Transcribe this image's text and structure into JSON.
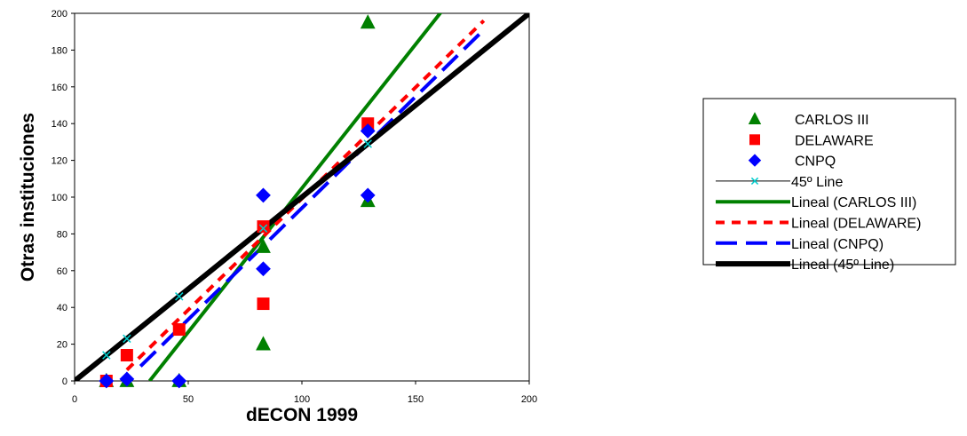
{
  "chart_data": {
    "type": "scatter",
    "title": "",
    "xlabel": "dECON 1999",
    "ylabel": "Otras instituciones",
    "xlim": [
      0,
      200
    ],
    "ylim": [
      0,
      200
    ],
    "x_ticks": [
      0,
      50,
      100,
      150,
      200
    ],
    "y_ticks": [
      0,
      20,
      40,
      60,
      80,
      100,
      120,
      140,
      160,
      180,
      200
    ],
    "grid": false,
    "legend_position": "right",
    "series": [
      {
        "name": "CARLOS III",
        "marker": "triangle",
        "color": "#008000",
        "points": [
          [
            14,
            0
          ],
          [
            23,
            0
          ],
          [
            46,
            0
          ],
          [
            83,
            20
          ],
          [
            83,
            73
          ],
          [
            129,
            98
          ],
          [
            129,
            195
          ]
        ]
      },
      {
        "name": "DELAWARE",
        "marker": "square",
        "color": "#ff0000",
        "points": [
          [
            14,
            0
          ],
          [
            23,
            14
          ],
          [
            46,
            28
          ],
          [
            83,
            42
          ],
          [
            83,
            84
          ],
          [
            129,
            140
          ]
        ]
      },
      {
        "name": "CNPQ",
        "marker": "diamond",
        "color": "#0000ff",
        "points": [
          [
            14,
            0
          ],
          [
            23,
            1
          ],
          [
            46,
            0
          ],
          [
            83,
            61
          ],
          [
            83,
            101
          ],
          [
            129,
            101
          ],
          [
            129,
            136
          ]
        ]
      },
      {
        "name": "45º Line",
        "marker": "x",
        "color": "#00cccc",
        "line_color": "#000000",
        "points": [
          [
            14,
            14
          ],
          [
            23,
            23
          ],
          [
            46,
            46
          ],
          [
            83,
            83
          ],
          [
            129,
            129
          ]
        ]
      }
    ],
    "trendlines": [
      {
        "name": "Lineal (CARLOS III)",
        "color": "#008000",
        "style": "solid",
        "width": 4,
        "x": [
          33,
          164
        ],
        "y": [
          0,
          205
        ]
      },
      {
        "name": "Lineal (DELAWARE)",
        "color": "#ff0000",
        "style": "dotted",
        "width": 4,
        "x": [
          23,
          180
        ],
        "y": [
          6,
          196
        ]
      },
      {
        "name": "Lineal (CNPQ)",
        "color": "#0000ff",
        "style": "dashed",
        "width": 4,
        "x": [
          29,
          180
        ],
        "y": [
          8,
          191
        ]
      },
      {
        "name": "Lineal (45º Line)",
        "color": "#000000",
        "style": "solid",
        "width": 6,
        "x": [
          0,
          200
        ],
        "y": [
          0,
          200
        ]
      }
    ]
  }
}
